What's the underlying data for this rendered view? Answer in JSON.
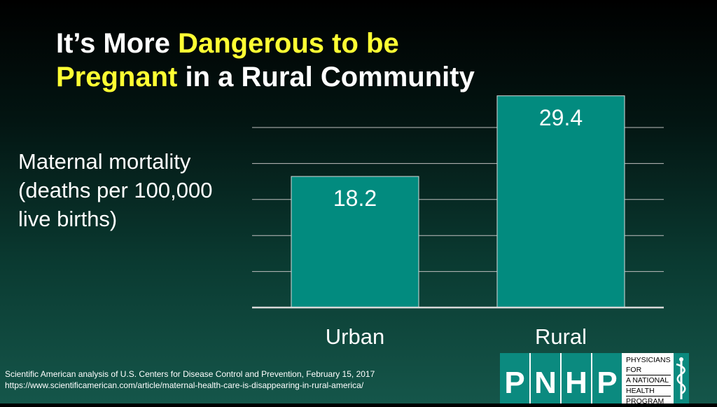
{
  "title": {
    "part1": "It’s More ",
    "highlight1": "Dangerous to be",
    "highlight2": "Pregnant",
    "part2": " in a Rural Community"
  },
  "y_axis_label": "Maternal mortality (deaths per 100,000 live births)",
  "chart_data": {
    "type": "bar",
    "categories": [
      "Urban",
      "Rural"
    ],
    "values": [
      18.2,
      29.4
    ],
    "data_labels": [
      "18.2",
      "29.4"
    ],
    "ylabel": "Maternal mortality (deaths per 100,000 live births)",
    "ylim": [
      0,
      30
    ],
    "grid": true,
    "bar_color": "#028b7f",
    "gridline_color": "#bfbfbf"
  },
  "source": {
    "line1": "Scientific American analysis of U.S. Centers for Disease Control and Prevention, February 15, 2017",
    "line2": "https://www.scientificamerican.com/article/maternal-health-care-is-disappearing-in-rural-america/"
  },
  "logo": {
    "letters": [
      "P",
      "N",
      "H",
      "P"
    ],
    "lines": [
      "PHYSICIANS FOR",
      "A NATIONAL",
      "HEALTH",
      "PROGRAM"
    ],
    "icon": "caduceus-icon",
    "color": "#0b8a7f"
  }
}
